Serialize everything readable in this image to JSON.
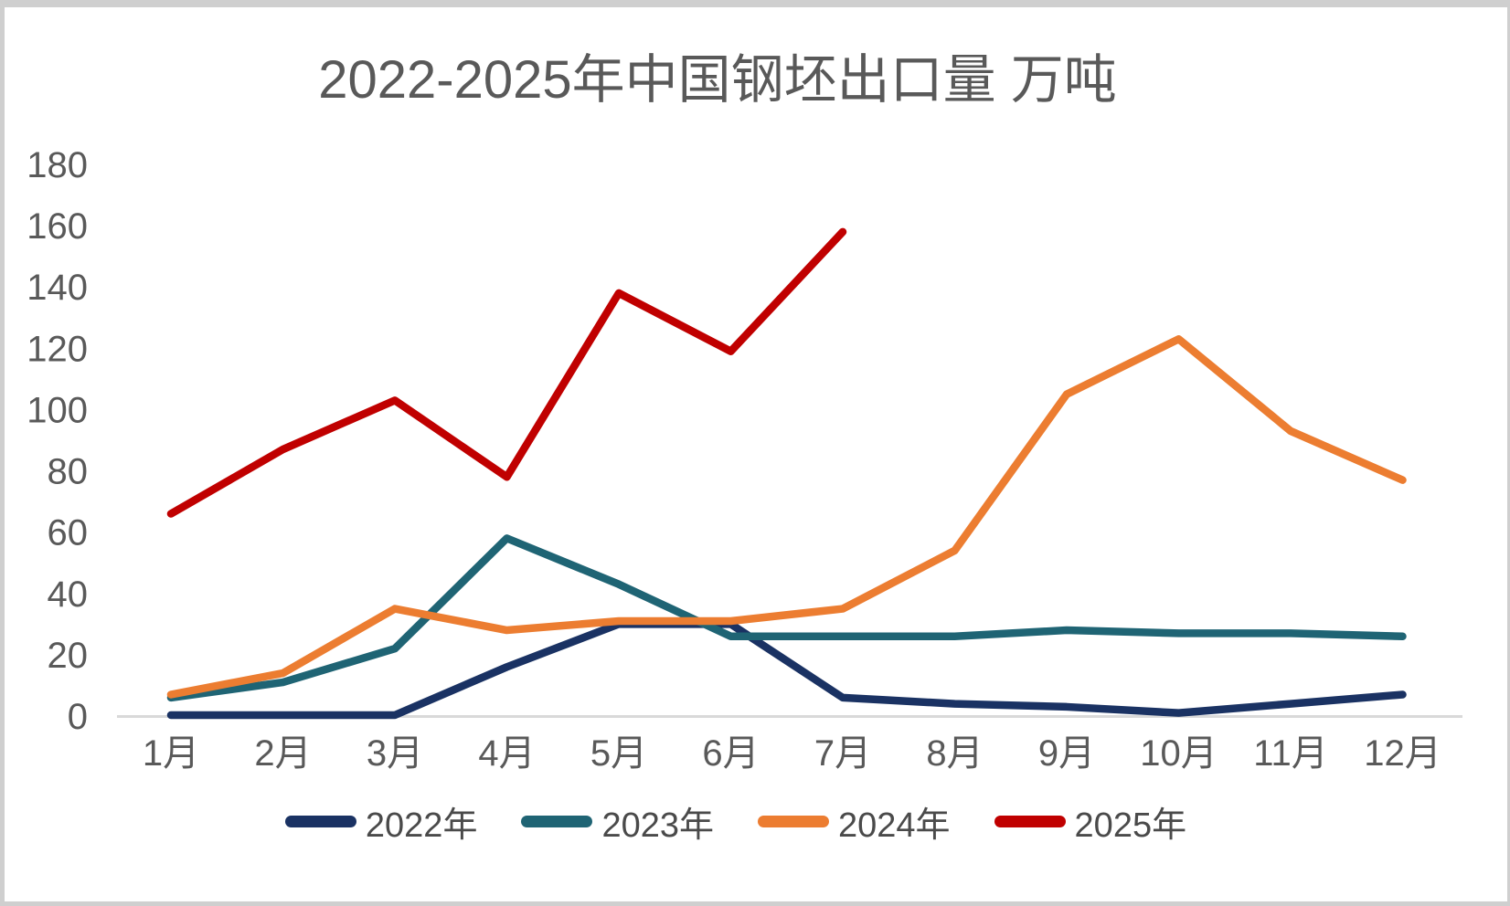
{
  "title": "2022-2025年中国钢坯出口量 万吨",
  "frame": {
    "background": "#ffffff",
    "border_color": "#cfcfcf"
  },
  "axis_style": {
    "axis_line_color": "#d9d9d9",
    "tick_label_color": "#595959"
  },
  "chart_data": {
    "type": "line",
    "title": "2022-2025年中国钢坯出口量 万吨",
    "categories": [
      "1月",
      "2月",
      "3月",
      "4月",
      "5月",
      "6月",
      "7月",
      "8月",
      "9月",
      "10月",
      "11月",
      "12月"
    ],
    "xlabel": "",
    "ylabel": "",
    "ylim": [
      0,
      180
    ],
    "y_tick_step": 20,
    "y_tick_labels": [
      "180",
      "160",
      "140",
      "120",
      "100",
      "80",
      "60",
      "40",
      "20",
      "0"
    ],
    "grid": false,
    "legend_position": "bottom",
    "series": [
      {
        "name": "2022年",
        "color": "#1A3263",
        "values": [
          0.3,
          0.3,
          0.3,
          16,
          30,
          30,
          6,
          4,
          3,
          1,
          4,
          7
        ]
      },
      {
        "name": "2023年",
        "color": "#1F6474",
        "values": [
          6,
          11,
          22,
          58,
          43,
          26,
          26,
          26,
          28,
          27,
          27,
          26
        ]
      },
      {
        "name": "2024年",
        "color": "#EC7D31",
        "values": [
          7,
          14,
          35,
          28,
          31,
          31,
          35,
          54,
          105,
          123,
          93,
          77
        ]
      },
      {
        "name": "2025年",
        "color": "#C00000",
        "values": [
          66,
          87,
          103,
          78,
          138,
          119,
          158
        ]
      }
    ]
  }
}
